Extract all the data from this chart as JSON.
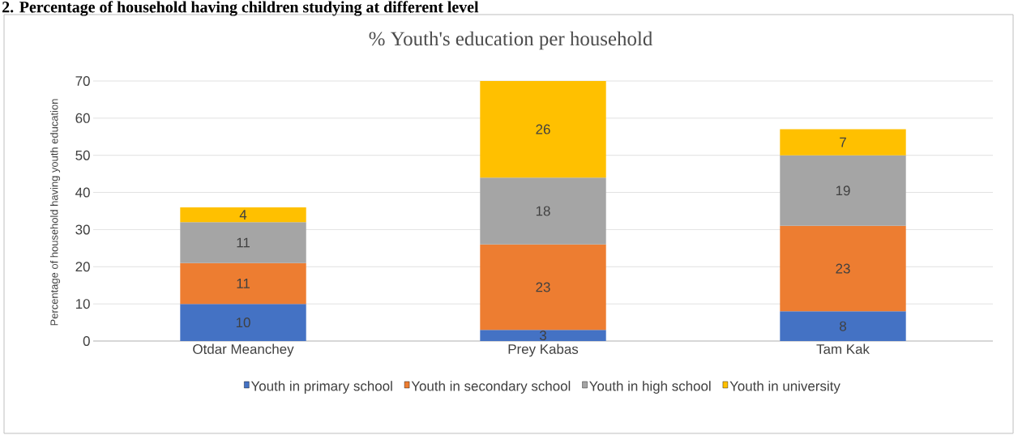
{
  "chart_data": {
    "type": "bar",
    "title": "% Youth's education per household",
    "ylabel": "Percentage of household having  youth education",
    "annotations": [
      "2. Percentage of household having children studying at different level"
    ],
    "categories": [
      "Otdar Meanchey",
      "Prey Kabas",
      "Tam Kak"
    ],
    "series": [
      {
        "name": "Youth in primary school",
        "color": "#4472c4",
        "values": [
          10,
          3,
          8
        ]
      },
      {
        "name": "Youth in secondary school",
        "color": "#ed7d31",
        "values": [
          11,
          23,
          23
        ]
      },
      {
        "name": "Youth in high school",
        "color": "#a5a5a5",
        "values": [
          11,
          18,
          19
        ]
      },
      {
        "name": "Youth in university",
        "color": "#ffc000",
        "values": [
          4,
          26,
          7
        ]
      }
    ],
    "stacked": true,
    "ylim": [
      0,
      70
    ],
    "yticks": [
      0,
      10,
      20,
      30,
      40,
      50,
      60,
      70
    ],
    "grid": "y",
    "legend": "bottom",
    "data_labels": true
  }
}
